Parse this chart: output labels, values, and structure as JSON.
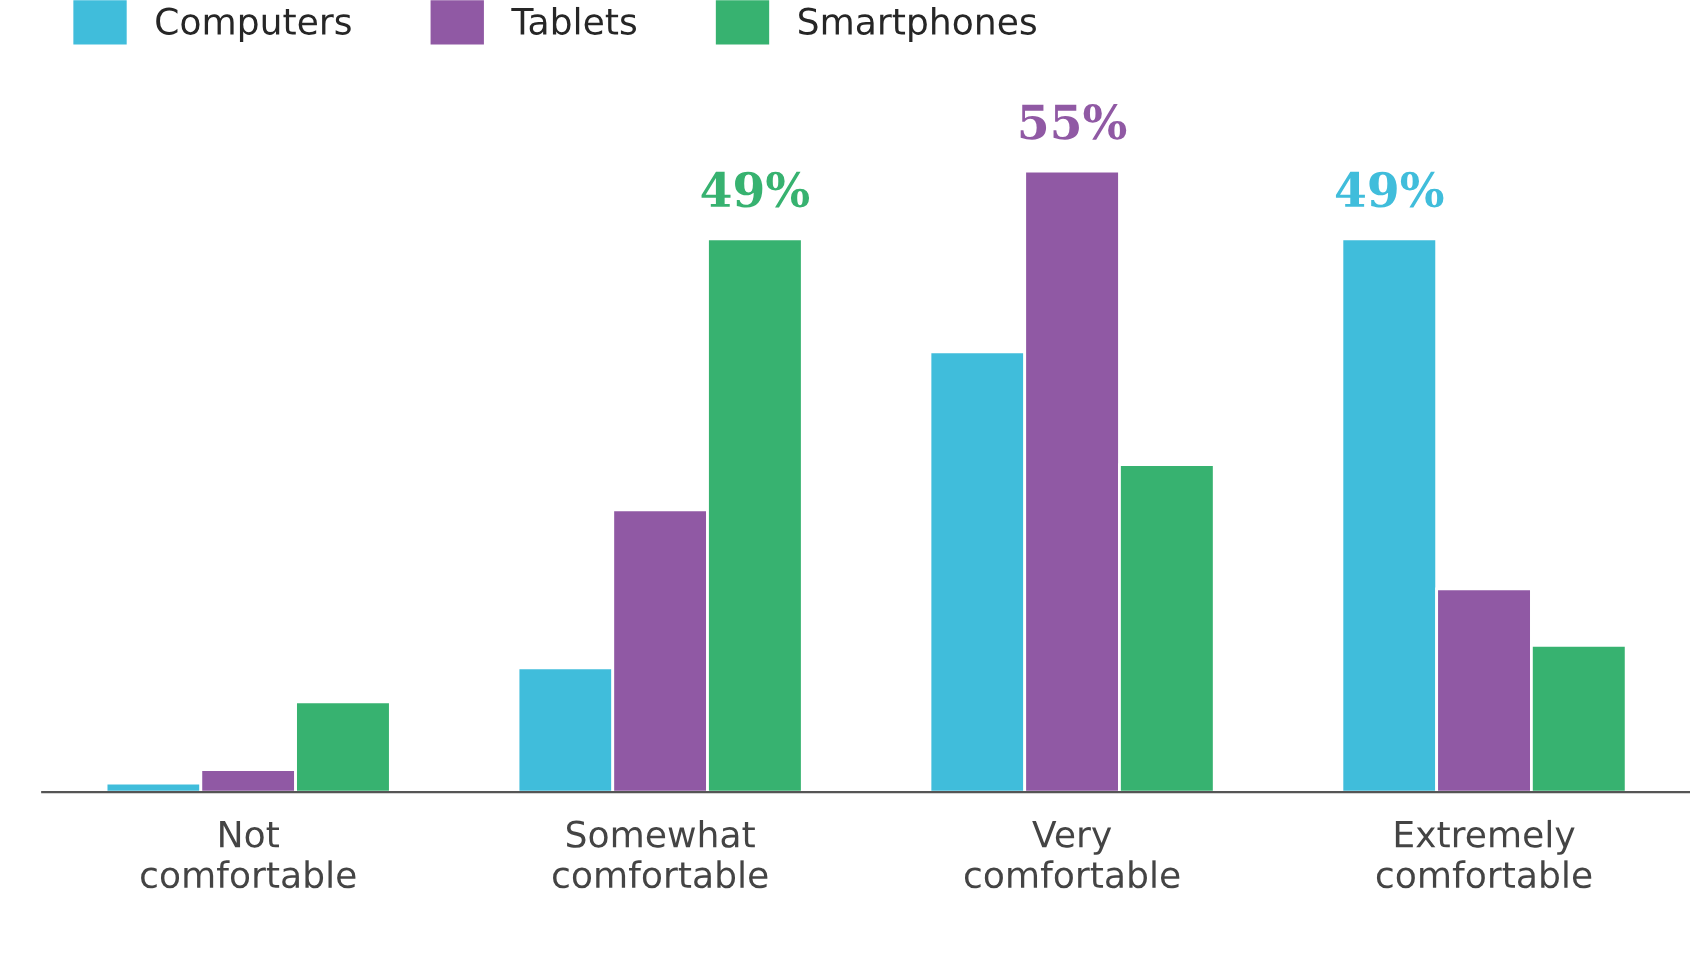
{
  "chart_data": {
    "type": "bar",
    "categories": [
      "Not\ncomfortable",
      "Somewhat\ncomfortable",
      "Very\ncomfortable",
      "Extremely\ncomfortable"
    ],
    "series": [
      {
        "name": "Computers",
        "color": "#40bddb",
        "values": [
          0.8,
          11,
          39,
          49
        ],
        "value_labels": [
          null,
          null,
          null,
          "49%"
        ]
      },
      {
        "name": "Tablets",
        "color": "#9059a4",
        "values": [
          2,
          25,
          55,
          18
        ],
        "value_labels": [
          null,
          null,
          "55%",
          null
        ]
      },
      {
        "name": "Smartphones",
        "color": "#37b270",
        "values": [
          8,
          49,
          29,
          13
        ],
        "value_labels": [
          null,
          "49%",
          null,
          null
        ]
      }
    ],
    "tick_labels": "x",
    "grid": false,
    "legend": "top left"
  }
}
